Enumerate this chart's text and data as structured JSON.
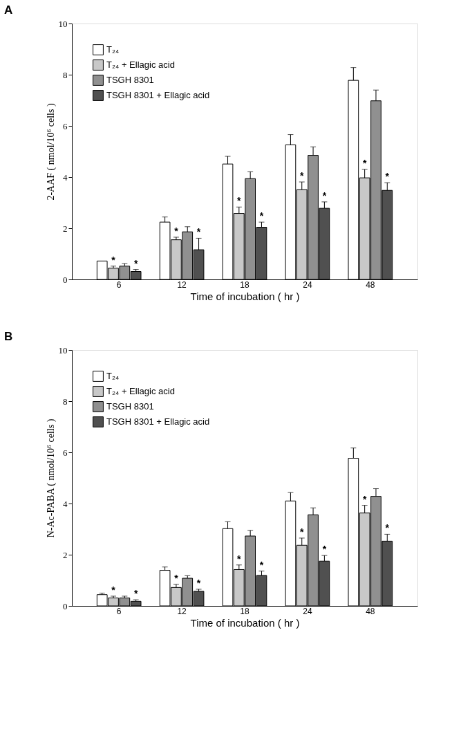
{
  "chart_data": [
    {
      "type": "bar",
      "title": "A",
      "xlabel": "Time of incubation ( hr )",
      "ylabel": "2-AAF ( nmol/10⁶ cells )",
      "categories": [
        "6",
        "12",
        "18",
        "24",
        "48"
      ],
      "ylim": [
        0,
        10
      ],
      "yticks": [
        0,
        2,
        4,
        6,
        8,
        10
      ],
      "grid": false,
      "legend": "top left",
      "series": [
        {
          "name": "T₂₄",
          "color": "#ffffff",
          "values": [
            0.72,
            2.24,
            4.51,
            5.26,
            7.78
          ],
          "errors": [
            null,
            0.2,
            0.3,
            0.4,
            0.5
          ]
        },
        {
          "name": "T₂₄ + Ellagic acid",
          "color": "#c8c8c8",
          "values": [
            0.44,
            1.55,
            2.58,
            3.51,
            3.97
          ],
          "errors": [
            0.08,
            0.1,
            0.25,
            0.3,
            0.33
          ],
          "value_labels": [
            "*",
            "*",
            "*",
            "*",
            "*"
          ]
        },
        {
          "name": "TSGH 8301",
          "color": "#909090",
          "values": [
            0.52,
            1.86,
            3.94,
            4.85,
            6.98
          ],
          "errors": [
            0.1,
            0.2,
            0.27,
            0.33,
            0.42
          ]
        },
        {
          "name": "TSGH 8301 + Ellagic acid",
          "color": "#505050",
          "values": [
            0.31,
            1.16,
            2.04,
            2.78,
            3.48
          ],
          "errors": [
            0.08,
            0.45,
            0.2,
            0.25,
            0.3
          ],
          "value_labels": [
            "*",
            "*",
            "*",
            "*",
            "*"
          ]
        }
      ]
    },
    {
      "type": "bar",
      "title": "B",
      "xlabel": "Time of incubation ( hr )",
      "ylabel": "N-Ac-PABA ( nmol/10⁶ cells )",
      "categories": [
        "6",
        "12",
        "18",
        "24",
        "48"
      ],
      "ylim": [
        0,
        10
      ],
      "yticks": [
        0,
        2,
        4,
        6,
        8,
        10
      ],
      "grid": false,
      "legend": "top left",
      "series": [
        {
          "name": "T₂₄",
          "color": "#ffffff",
          "values": [
            0.44,
            1.39,
            3.02,
            4.1,
            5.77
          ],
          "errors": [
            0.06,
            0.13,
            0.27,
            0.33,
            0.4
          ]
        },
        {
          "name": "T₂₄ + Ellagic acid",
          "color": "#c8c8c8",
          "values": [
            0.31,
            0.72,
            1.42,
            2.37,
            3.63
          ],
          "errors": [
            0.07,
            0.12,
            0.18,
            0.28,
            0.3
          ],
          "value_labels": [
            "*",
            "*",
            "*",
            "*",
            "*"
          ]
        },
        {
          "name": "TSGH 8301",
          "color": "#909090",
          "values": [
            0.31,
            1.08,
            2.73,
            3.56,
            4.28
          ],
          "errors": [
            0.07,
            0.1,
            0.22,
            0.27,
            0.3
          ]
        },
        {
          "name": "TSGH 8301 + Ellagic acid",
          "color": "#505050",
          "values": [
            0.18,
            0.57,
            1.19,
            1.75,
            2.53
          ],
          "errors": [
            0.06,
            0.08,
            0.17,
            0.22,
            0.27
          ],
          "value_labels": [
            "*",
            "*",
            "*",
            "*",
            "*"
          ]
        }
      ]
    }
  ]
}
